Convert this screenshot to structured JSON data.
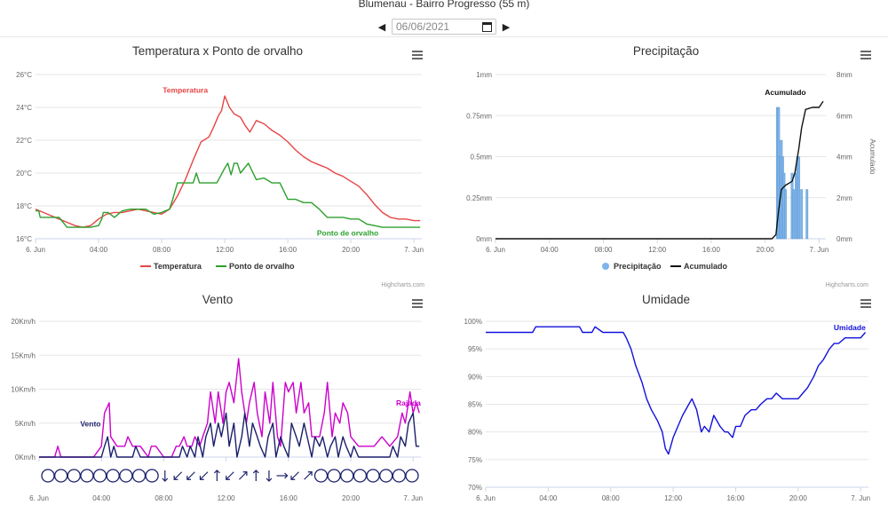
{
  "header": {
    "title": "Blumenau - Bairro Progresso (55 m)",
    "date_value": "06/06/2021",
    "prev_label": "◀",
    "next_label": "▶"
  },
  "credits": "Highcharts.com",
  "chart_data": [
    {
      "id": "temp",
      "type": "line",
      "title": "Temperatura x Ponto de orvalho",
      "x_ticks": [
        "6. Jun",
        "04:00",
        "08:00",
        "12:00",
        "16:00",
        "20:00",
        "7. Jun"
      ],
      "x_range_hours": [
        0,
        24.5
      ],
      "y_ticks": [
        "16°C",
        "18°C",
        "20°C",
        "22°C",
        "24°C",
        "26°C"
      ],
      "ylim": [
        16,
        26
      ],
      "grid": true,
      "legend": "bottom",
      "series": [
        {
          "name": "Temperatura",
          "color": "#e64545",
          "label": "Temperatura",
          "x": [
            0,
            0.5,
            1,
            1.5,
            2,
            2.5,
            3,
            3.5,
            4,
            4.5,
            5,
            5.5,
            6,
            6.5,
            7,
            7.5,
            8,
            8.5,
            9,
            9.5,
            10,
            10.5,
            11,
            11.3,
            11.6,
            11.8,
            12,
            12.3,
            12.6,
            13,
            13.3,
            13.6,
            14,
            14.5,
            15,
            15.5,
            16,
            16.5,
            17,
            17.5,
            18,
            18.5,
            19,
            19.5,
            20,
            20.5,
            21,
            21.5,
            22,
            22.5,
            23,
            23.5,
            24,
            24.4
          ],
          "y": [
            17.8,
            17.6,
            17.4,
            17.2,
            17.0,
            16.8,
            16.7,
            16.8,
            17.2,
            17.5,
            17.6,
            17.6,
            17.7,
            17.8,
            17.7,
            17.6,
            17.5,
            17.8,
            18.6,
            19.6,
            20.8,
            21.9,
            22.2,
            22.8,
            23.5,
            23.8,
            24.7,
            24.0,
            23.6,
            23.4,
            22.9,
            22.5,
            23.2,
            23.0,
            22.6,
            22.3,
            21.9,
            21.4,
            21.0,
            20.7,
            20.5,
            20.3,
            20.0,
            19.8,
            19.5,
            19.2,
            18.7,
            18.1,
            17.6,
            17.3,
            17.2,
            17.2,
            17.1,
            17.1
          ]
        },
        {
          "name": "Ponto de orvalho",
          "color": "#2ca02c",
          "label": "Ponto de orvalho",
          "x": [
            0,
            0.2,
            0.3,
            1,
            1.5,
            2,
            3,
            3.5,
            4,
            4.2,
            4.3,
            4.4,
            4.6,
            5,
            5.5,
            6,
            6.5,
            7,
            7.5,
            8,
            8.5,
            8.7,
            9,
            9.5,
            10,
            10.2,
            10.4,
            11,
            11.5,
            12,
            12.2,
            12.4,
            12.6,
            12.8,
            13,
            13.5,
            14,
            14.5,
            15,
            15.5,
            16,
            16.5,
            17,
            17.5,
            18,
            18.5,
            19,
            19.5,
            20,
            20.5,
            21,
            21.5,
            22,
            22.5,
            23,
            23.5,
            24,
            24.4
          ],
          "y": [
            17.7,
            17.7,
            17.3,
            17.3,
            17.3,
            16.7,
            16.7,
            16.7,
            16.8,
            17.2,
            17.6,
            17.6,
            17.6,
            17.3,
            17.7,
            17.8,
            17.8,
            17.8,
            17.5,
            17.6,
            17.8,
            18.4,
            19.4,
            19.4,
            19.4,
            20.0,
            19.4,
            19.4,
            19.4,
            20.3,
            20.6,
            19.9,
            20.6,
            20.6,
            20.0,
            20.6,
            19.6,
            19.7,
            19.4,
            19.4,
            18.4,
            18.4,
            18.2,
            18.2,
            17.8,
            17.3,
            17.3,
            17.3,
            17.2,
            17.2,
            16.9,
            16.8,
            16.7,
            16.7,
            16.7,
            16.7,
            16.7,
            16.7
          ]
        }
      ]
    },
    {
      "id": "precip",
      "type": "bar+line",
      "title": "Precipitação",
      "x_ticks": [
        "6. Jun",
        "04:00",
        "08:00",
        "12:00",
        "16:00",
        "20:00",
        "7. Jun"
      ],
      "x_range_hours": [
        0,
        24.5
      ],
      "y_ticks": [
        "0mm",
        "0.25mm",
        "0.5mm",
        "0.75mm",
        "1mm"
      ],
      "ylim": [
        0,
        1
      ],
      "y2_ticks": [
        "0mm",
        "2mm",
        "4mm",
        "6mm",
        "8mm"
      ],
      "y2lim": [
        0,
        8
      ],
      "y2label": "Acumulado",
      "grid": true,
      "legend": "bottom",
      "series": [
        {
          "name": "Precipitação",
          "color": "#7cb5ec",
          "type": "bar",
          "x": [
            20.9,
            21.0,
            21.1,
            21.2,
            21.3,
            21.4,
            21.5,
            22.0,
            22.1,
            22.3,
            22.4,
            22.5,
            22.7,
            23.1
          ],
          "y": [
            0.8,
            0.8,
            0.5,
            0.6,
            0.5,
            0.4,
            0.3,
            0.4,
            0.3,
            0.4,
            0.5,
            0.5,
            0.3,
            0.3
          ]
        },
        {
          "name": "Acumulado",
          "color": "#111111",
          "type": "line",
          "label": "Acumulado",
          "x": [
            0,
            20.5,
            20.8,
            21.0,
            21.2,
            21.5,
            22.0,
            22.2,
            22.5,
            22.7,
            23.0,
            23.5,
            24.0,
            24.3
          ],
          "y": [
            0,
            0,
            0.2,
            1.4,
            2.4,
            2.6,
            2.8,
            3.2,
            4.4,
            5.4,
            6.3,
            6.4,
            6.4,
            6.7
          ]
        }
      ]
    },
    {
      "id": "wind",
      "type": "line",
      "title": "Vento",
      "x_ticks": [
        "6. Jun",
        "04:00",
        "08:00",
        "12:00",
        "16:00",
        "20:00",
        "7. Jun"
      ],
      "x_range_hours": [
        0,
        24.5
      ],
      "y_ticks": [
        "0Km/h",
        "5Km/h",
        "10Km/h",
        "15Km/h",
        "20Km/h"
      ],
      "ylim": [
        0,
        20
      ],
      "grid": true,
      "series": [
        {
          "name": "Rajada",
          "color": "#cc00cc",
          "label": "Rajada",
          "x": [
            0,
            1,
            1.2,
            1.4,
            2,
            3,
            3.5,
            4,
            4.2,
            4.5,
            4.6,
            5,
            5.5,
            5.7,
            6,
            6.2,
            6.5,
            7,
            7.2,
            7.5,
            8,
            8.5,
            8.8,
            9,
            9.3,
            9.5,
            9.8,
            10,
            10.3,
            10.5,
            10.8,
            11,
            11.3,
            11.5,
            11.8,
            12,
            12.2,
            12.5,
            12.8,
            13,
            13.3,
            13.5,
            13.8,
            14,
            14.3,
            14.5,
            14.8,
            15,
            15.3,
            15.5,
            15.8,
            16,
            16.3,
            16.5,
            16.8,
            17,
            17.3,
            17.5,
            17.8,
            18,
            18.3,
            18.5,
            18.8,
            19,
            19.3,
            19.5,
            19.8,
            20,
            20.5,
            21,
            21.5,
            22,
            22.5,
            23,
            23.3,
            23.5,
            23.8,
            24,
            24.2,
            24.4
          ],
          "y": [
            0,
            0,
            1.6,
            0,
            0,
            0,
            0,
            1.6,
            6.5,
            8,
            3,
            1.6,
            1.6,
            3,
            1.6,
            1.6,
            1.6,
            0,
            1.6,
            1.6,
            0,
            0,
            1.6,
            1.6,
            3,
            1.6,
            1.6,
            3,
            1.6,
            3,
            5,
            9.6,
            5,
            9.6,
            5,
            9.6,
            11,
            8,
            14.5,
            9.6,
            5,
            8,
            11,
            6.5,
            3,
            9.6,
            5,
            11,
            3,
            1.6,
            11,
            9.6,
            11,
            6.5,
            11,
            6.5,
            8,
            3,
            3,
            3,
            6.5,
            11,
            3,
            6.5,
            5,
            8,
            6.5,
            3,
            1.6,
            1.6,
            1.6,
            3,
            1.6,
            3,
            6.5,
            5,
            9.6,
            6.5,
            8,
            6.5
          ]
        },
        {
          "name": "Vento",
          "color": "#1a1f6b",
          "label": "Vento",
          "x": [
            0,
            2.5,
            3,
            3.5,
            4,
            4.2,
            4.4,
            4.6,
            4.8,
            5,
            5.5,
            6,
            6.2,
            6.5,
            7,
            7.5,
            8,
            8.5,
            8.7,
            9,
            9.2,
            9.5,
            9.7,
            10,
            10.2,
            10.5,
            10.7,
            11,
            11.2,
            11.5,
            11.7,
            12,
            12.2,
            12.5,
            12.7,
            13,
            13.2,
            13.5,
            13.7,
            14,
            14.2,
            14.5,
            14.7,
            15,
            15.2,
            15.5,
            15.7,
            16,
            16.2,
            16.5,
            16.7,
            17,
            17.2,
            17.5,
            17.7,
            18,
            18.2,
            18.5,
            18.7,
            19,
            19.2,
            19.5,
            19.7,
            20,
            20.2,
            20.5,
            21,
            21.5,
            22,
            22.5,
            22.7,
            23,
            23.2,
            23.5,
            23.7,
            24,
            24.2,
            24.4
          ],
          "y": [
            0,
            0,
            0,
            0,
            0,
            1.6,
            3,
            0,
            1.6,
            0,
            0,
            0,
            1.6,
            0,
            0,
            0,
            0,
            0,
            0,
            0,
            1.6,
            0,
            1.6,
            0,
            3,
            0,
            3,
            5,
            1.6,
            5,
            3,
            6.5,
            1.6,
            5,
            0,
            3,
            6.5,
            1.6,
            5,
            3,
            1.6,
            0,
            3,
            5,
            0,
            3,
            1.6,
            0,
            5,
            3,
            1.6,
            5,
            3,
            0,
            3,
            1.6,
            3,
            0,
            1.6,
            3,
            0,
            3,
            1.6,
            0,
            1.6,
            0,
            0,
            0,
            0,
            0,
            1.6,
            0,
            3,
            1.6,
            5,
            6.5,
            1.6,
            1.6
          ]
        }
      ],
      "wind_directions": [
        "calm",
        "calm",
        "calm",
        "calm",
        "calm",
        "calm",
        "calm",
        "calm",
        "calm",
        "S",
        "SW",
        "SW",
        "SW",
        "N",
        "SW",
        "NE",
        "N",
        "S",
        "E",
        "SW",
        "NE",
        "calm",
        "calm",
        "calm",
        "calm",
        "calm",
        "calm",
        "calm",
        "calm"
      ]
    },
    {
      "id": "humid",
      "type": "line",
      "title": "Umidade",
      "x_ticks": [
        "6. Jun",
        "04:00",
        "08:00",
        "12:00",
        "16:00",
        "20:00",
        "7. Jun"
      ],
      "x_range_hours": [
        0,
        24.5
      ],
      "y_ticks": [
        "70%",
        "75%",
        "80%",
        "85%",
        "90%",
        "95%",
        "100%"
      ],
      "ylim": [
        70,
        100
      ],
      "grid": true,
      "series": [
        {
          "name": "Umidade",
          "color": "#1111dd",
          "label": "Umidade",
          "x": [
            0,
            1,
            2,
            3,
            3.2,
            3.4,
            4,
            5,
            6,
            6.2,
            6.8,
            7,
            7.5,
            8,
            8.5,
            8.8,
            9,
            9.3,
            9.6,
            10,
            10.3,
            10.6,
            11,
            11.3,
            11.5,
            11.7,
            12,
            12.3,
            12.6,
            13,
            13.2,
            13.5,
            13.8,
            14,
            14.3,
            14.6,
            15,
            15.3,
            15.5,
            15.8,
            16,
            16.3,
            16.6,
            17,
            17.3,
            17.6,
            18,
            18.3,
            18.6,
            19,
            19.3,
            19.6,
            20,
            20.3,
            20.6,
            21,
            21.3,
            21.6,
            22,
            22.3,
            22.6,
            23,
            23.3,
            23.6,
            24,
            24.3
          ],
          "y": [
            98,
            98,
            98,
            98,
            99,
            99,
            99,
            99,
            99,
            98,
            98,
            99,
            98,
            98,
            98,
            98,
            97,
            95,
            92,
            89,
            86,
            84,
            82,
            80,
            77,
            76,
            79,
            81,
            83,
            85,
            86,
            84,
            80,
            81,
            80,
            83,
            81,
            80,
            80,
            79,
            81,
            81,
            83,
            84,
            84,
            85,
            86,
            86,
            87,
            86,
            86,
            86,
            86,
            87,
            88,
            90,
            92,
            93,
            95,
            96,
            96,
            97,
            97,
            97,
            97,
            98
          ]
        }
      ]
    }
  ]
}
